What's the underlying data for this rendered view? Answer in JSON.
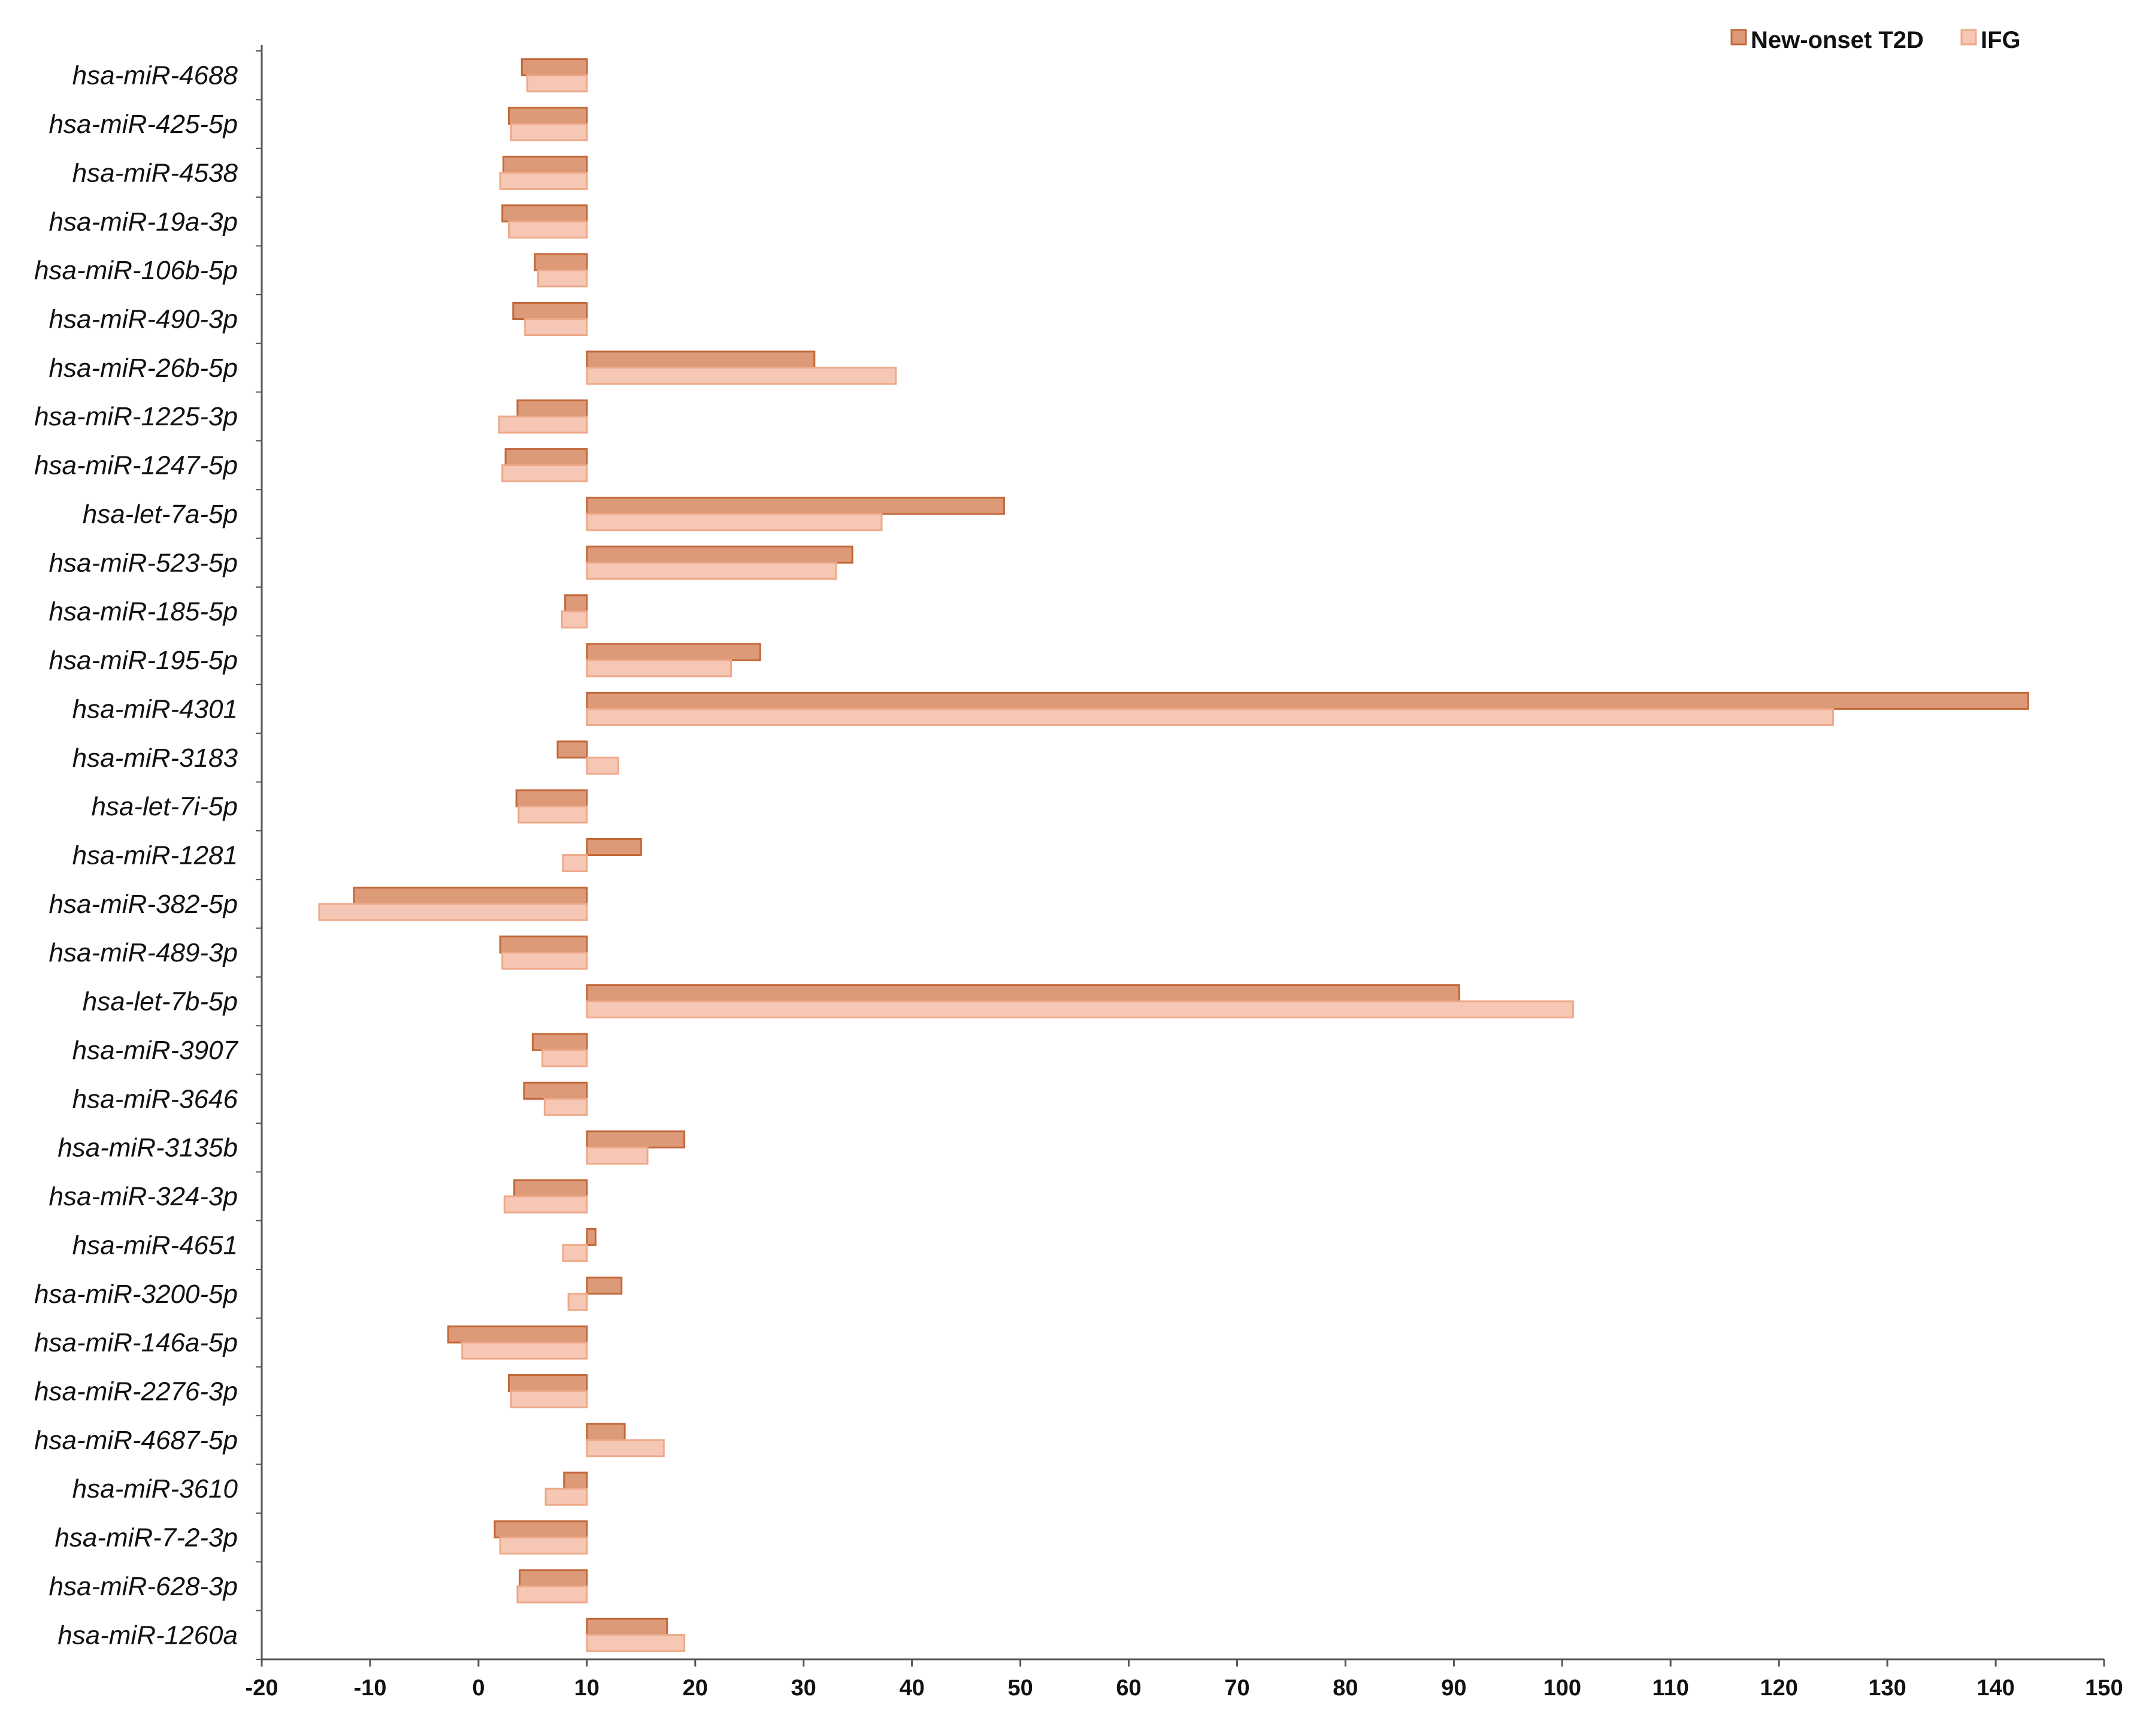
{
  "chart_data": {
    "type": "bar",
    "orientation": "horizontal",
    "title": "",
    "xlabel": "",
    "ylabel": "",
    "xlim": [
      -20,
      150
    ],
    "xticks": [
      -20,
      -10,
      0,
      10,
      20,
      30,
      40,
      50,
      60,
      70,
      80,
      90,
      100,
      110,
      120,
      130,
      140,
      150
    ],
    "baseline": 10,
    "grid": false,
    "legend_position": "top-right",
    "categories": [
      "hsa-miR-4688",
      "hsa-miR-425-5p",
      "hsa-miR-4538",
      "hsa-miR-19a-3p",
      "hsa-miR-106b-5p",
      "hsa-miR-490-3p",
      "hsa-miR-26b-5p",
      "hsa-miR-1225-3p",
      "hsa-miR-1247-5p",
      "hsa-let-7a-5p",
      "hsa-miR-523-5p",
      "hsa-miR-185-5p",
      "hsa-miR-195-5p",
      "hsa-miR-4301",
      "hsa-miR-3183",
      "hsa-let-7i-5p",
      "hsa-miR-1281",
      "hsa-miR-382-5p",
      "hsa-miR-489-3p",
      "hsa-let-7b-5p",
      "hsa-miR-3907",
      "hsa-miR-3646",
      "hsa-miR-3135b",
      "hsa-miR-324-3p",
      "hsa-miR-4651",
      "hsa-miR-3200-5p",
      "hsa-miR-146a-5p",
      "hsa-miR-2276-3p",
      "hsa-miR-4687-5p",
      "hsa-miR-3610",
      "hsa-miR-7-2-3p",
      "hsa-miR-628-3p",
      "hsa-miR-1260a"
    ],
    "series": [
      {
        "name": "New-onset T2D",
        "fill": "#dc9a78",
        "stroke": "#c2683a",
        "values": [
          4,
          2.8,
          2.3,
          2.2,
          5.2,
          3.2,
          31,
          3.6,
          2.5,
          48.5,
          34.5,
          8,
          26,
          143,
          7.3,
          3.5,
          15,
          -11.5,
          2,
          90.5,
          5,
          4.2,
          19,
          3.3,
          10.8,
          13.2,
          -2.8,
          2.8,
          13.5,
          7.9,
          1.5,
          3.8,
          17.4
        ]
      },
      {
        "name": "IFG",
        "fill": "#f6c7b5",
        "stroke": "#eda989",
        "values": [
          4.5,
          3,
          2,
          2.8,
          5.5,
          4.3,
          38.5,
          1.9,
          2.2,
          37.2,
          33,
          7.7,
          23.3,
          125,
          12.9,
          3.7,
          7.8,
          -14.7,
          2.2,
          101,
          5.9,
          6.1,
          15.6,
          2.4,
          7.8,
          8.3,
          -1.5,
          3,
          17.1,
          6.2,
          2,
          3.6,
          19
        ]
      }
    ]
  }
}
